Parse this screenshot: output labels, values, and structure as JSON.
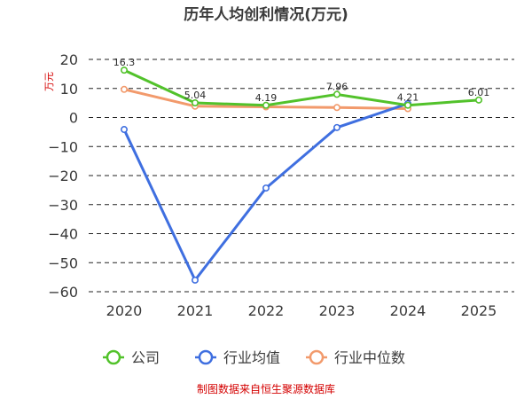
{
  "chart_data": {
    "type": "line",
    "title": "历年人均创利情况(万元)",
    "unit_label": "万元",
    "categories": [
      "2020",
      "2021",
      "2022",
      "2023",
      "2024",
      "2025"
    ],
    "y_ticks": [
      "20",
      "10",
      "0",
      "−10",
      "−20",
      "−30",
      "−40",
      "−50",
      "−60"
    ],
    "ylim": [
      -60,
      20
    ],
    "grid": true,
    "legend_position": "bottom",
    "series": [
      {
        "name": "公司",
        "color": "#52c22b",
        "values": [
          16.3,
          5.04,
          4.19,
          7.96,
          4.21,
          6.01
        ],
        "data_labels": [
          "16.3",
          "5.04",
          "4.19",
          "7.96",
          "4.21",
          "6.01"
        ]
      },
      {
        "name": "行业均值",
        "color": "#3f6fe0",
        "values": [
          -4.14,
          -56.0,
          -24.3,
          -3.46,
          4.78,
          null
        ],
        "data_labels": [
          "",
          "",
          "",
          "",
          "",
          ""
        ]
      },
      {
        "name": "行业中位数",
        "color": "#f29a6c",
        "values": [
          9.68,
          3.88,
          3.66,
          3.43,
          3.05,
          null
        ],
        "data_labels": [
          "",
          "",
          "",
          "",
          "",
          ""
        ]
      }
    ],
    "source": "制图数据来自恒生聚源数据库"
  }
}
